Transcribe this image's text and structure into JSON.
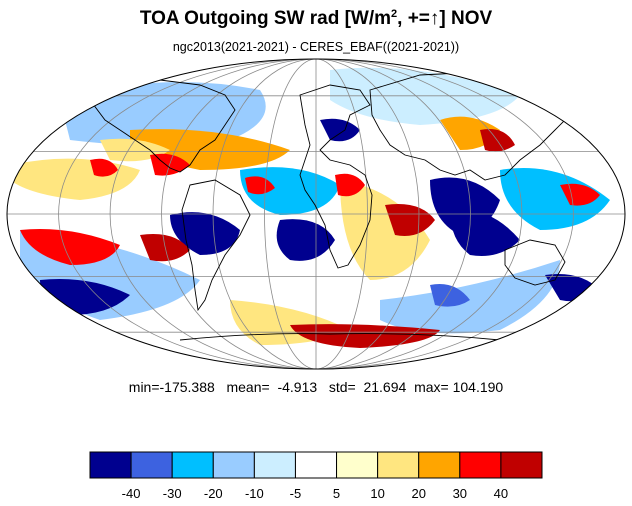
{
  "title_main": "TOA Outgoing SW rad [W/m",
  "title_sup": "2",
  "title_rest": ", +=↑] NOV",
  "subtitle": "ngc2013(2021-2021) - CERES_EBAF((2021-2021))",
  "stats": {
    "min_label": "min=",
    "min": "-175.388",
    "mean_label": "mean=",
    "mean": "-4.913",
    "std_label": "std=",
    "std": "21.694",
    "max_label": "max=",
    "max": "104.190"
  },
  "colorbar": {
    "colors": [
      "#00008f",
      "#3d62e0",
      "#00bfff",
      "#99ccff",
      "#cceeff",
      "#ffffff",
      "#ffffcc",
      "#ffe680",
      "#ffa500",
      "#ff0000",
      "#c00000"
    ],
    "tick_labels": [
      "-40",
      "-30",
      "-20",
      "-10",
      "-5",
      "5",
      "10",
      "20",
      "30",
      "40"
    ]
  },
  "map": {
    "projection": "mollweide",
    "grid_spacing_deg": 30
  }
}
